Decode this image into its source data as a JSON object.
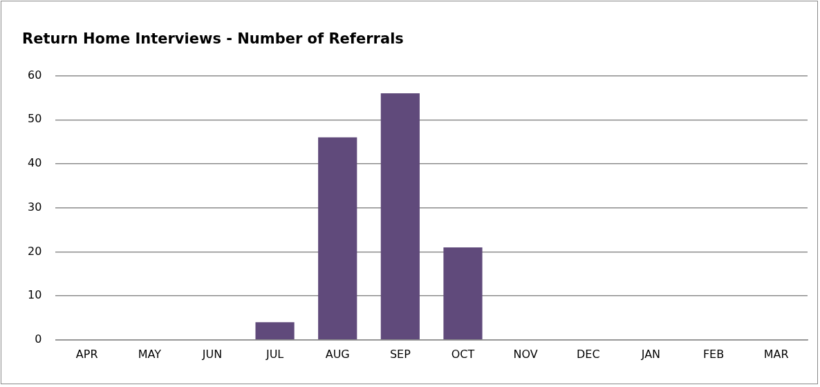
{
  "chart_data": {
    "type": "bar",
    "title": "Return Home Interviews - Number of Referrals",
    "categories": [
      "APR",
      "MAY",
      "JUN",
      "JUL",
      "AUG",
      "SEP",
      "OCT",
      "NOV",
      "DEC",
      "JAN",
      "FEB",
      "MAR"
    ],
    "values": [
      0,
      0,
      0,
      4,
      46,
      56,
      21,
      0,
      0,
      0,
      0,
      0
    ],
    "color": "#604a7b",
    "ylim": [
      0,
      60
    ],
    "yticks": [
      0,
      10,
      20,
      30,
      40,
      50,
      60
    ],
    "grid": "y",
    "legend": false
  }
}
